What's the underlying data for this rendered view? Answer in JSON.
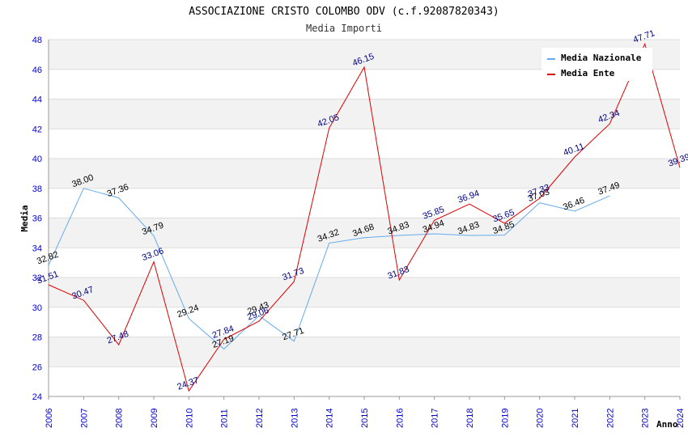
{
  "chart_data": {
    "type": "line",
    "title": "ASSOCIAZIONE CRISTO COLOMBO ODV (c.f.92087820343)",
    "subtitle": "Media Importi",
    "xlabel": "Anno",
    "ylabel": "Media",
    "ylim": [
      24,
      48
    ],
    "yticks": [
      24,
      26,
      28,
      30,
      32,
      34,
      36,
      38,
      40,
      42,
      44,
      46,
      48
    ],
    "categories": [
      "2006",
      "2007",
      "2008",
      "2009",
      "2010",
      "2011",
      "2012",
      "2013",
      "2014",
      "2015",
      "2016",
      "2017",
      "2018",
      "2019",
      "2020",
      "2021",
      "2022",
      "2023",
      "2024"
    ],
    "series": [
      {
        "name": "Media Nazionale",
        "color": "#66aaee",
        "label_color": "#000000",
        "values": [
          32.82,
          38.0,
          37.36,
          34.79,
          29.24,
          27.19,
          29.43,
          27.71,
          34.32,
          34.68,
          34.83,
          34.94,
          34.83,
          34.85,
          37.03,
          36.46,
          37.49,
          null,
          null
        ],
        "labels": [
          "32.82",
          "38.00",
          "37.36",
          "34.79",
          "29.24",
          "27.19",
          "29.43",
          "27.71",
          "34.32",
          "34.68",
          "34.83",
          "34.94",
          "34.83",
          "34.85",
          "37.03",
          "36.46",
          "37.49",
          "",
          ""
        ]
      },
      {
        "name": "Media Ente",
        "color": "#dd0000",
        "label_color": "#000080",
        "values": [
          31.51,
          30.47,
          27.48,
          33.06,
          24.37,
          27.84,
          29.06,
          31.73,
          42.05,
          46.15,
          31.83,
          35.85,
          36.94,
          35.65,
          37.33,
          40.11,
          42.34,
          47.71,
          39.39
        ],
        "labels": [
          "31.51",
          "30.47",
          "27.48",
          "33.06",
          "24.37",
          "27.84",
          "29.06",
          "31.73",
          "42.05",
          "46.15",
          "31.83",
          "35.85",
          "36.94",
          "35.65",
          "37.33",
          "40.11",
          "42.34",
          "47.71",
          "39.39"
        ]
      }
    ],
    "legend_position": "top-right",
    "grid": true
  }
}
